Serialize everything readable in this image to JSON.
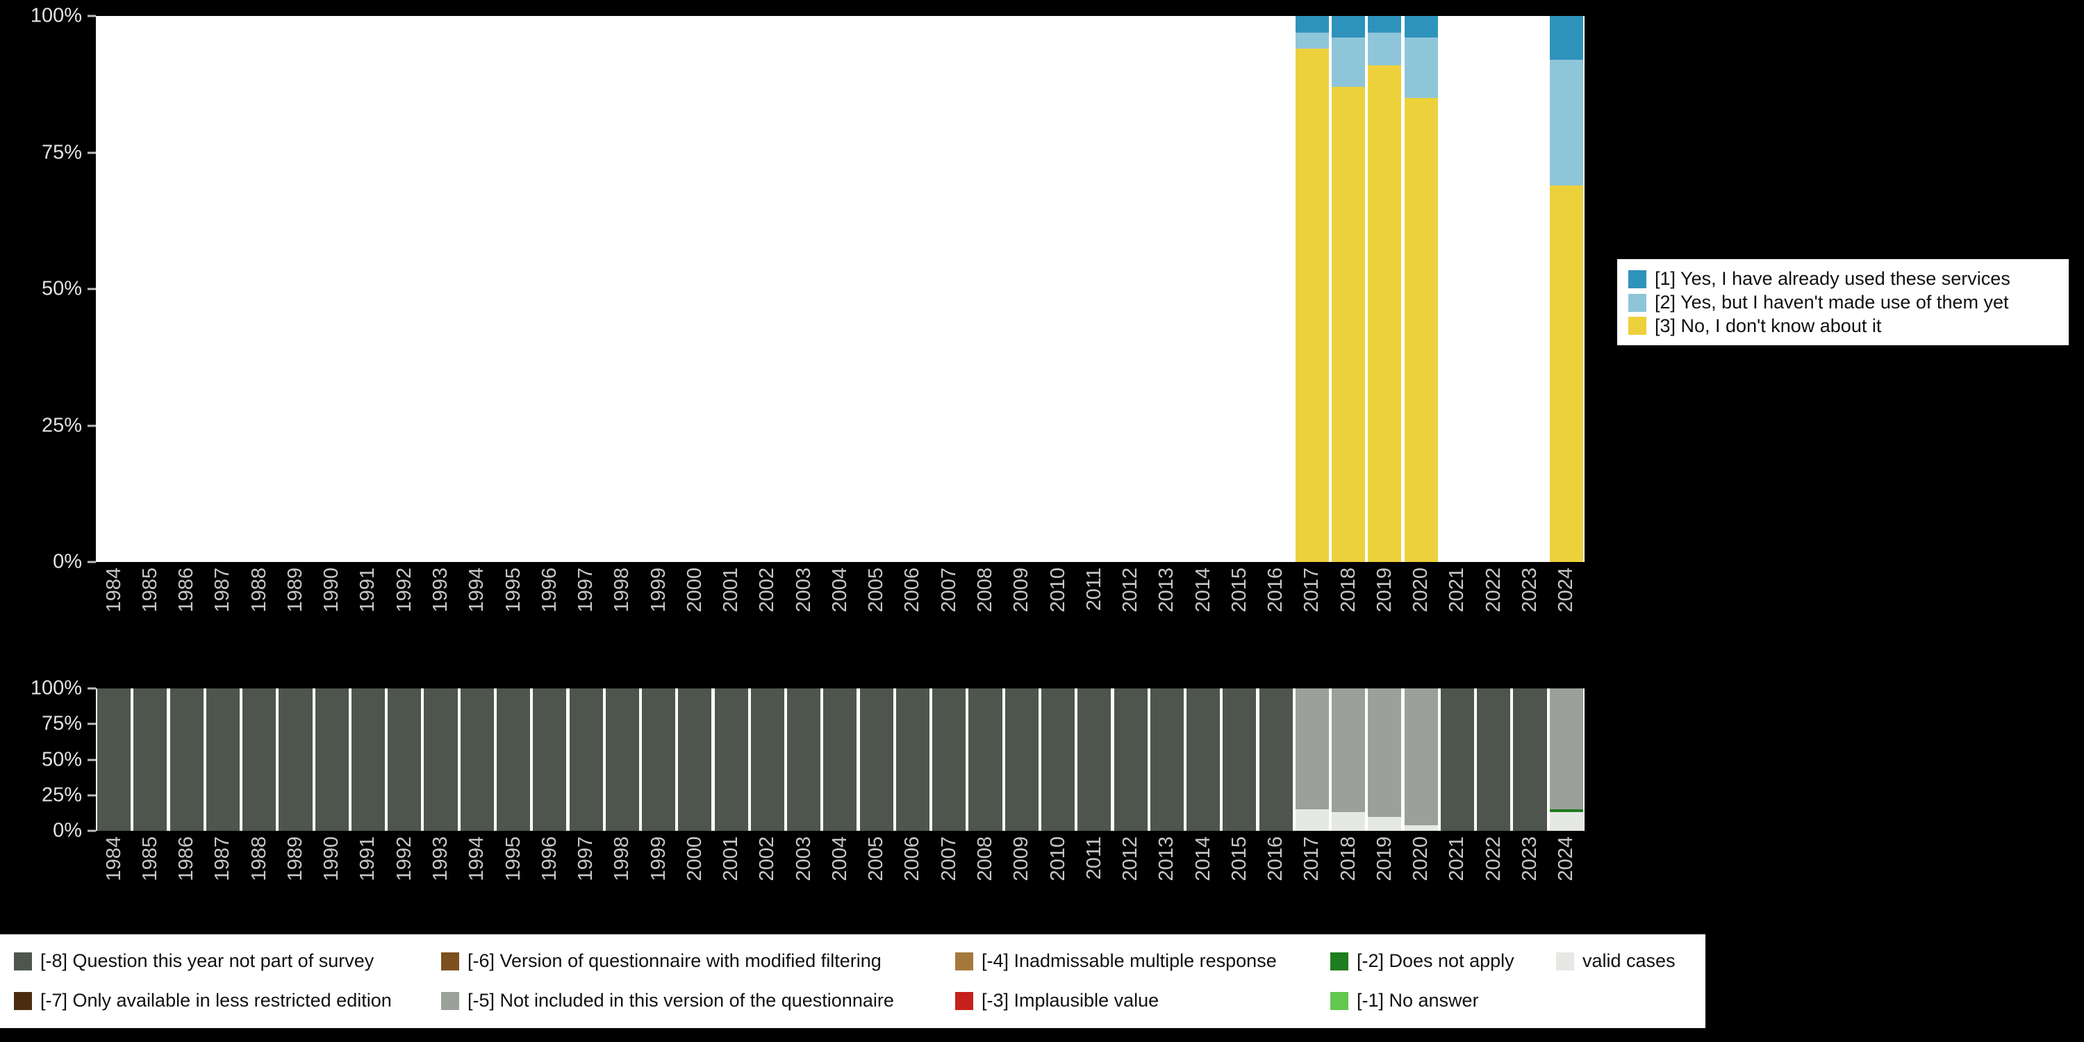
{
  "background": "#000000",
  "chart_data": [
    {
      "id": "usage",
      "type": "bar",
      "stacked": true,
      "title": "",
      "xlabel": "",
      "ylabel": "",
      "ylim": [
        0,
        100
      ],
      "grid": false,
      "legend_position": "right",
      "categories": [
        "1984",
        "1985",
        "1986",
        "1987",
        "1988",
        "1989",
        "1990",
        "1991",
        "1992",
        "1993",
        "1994",
        "1995",
        "1996",
        "1997",
        "1998",
        "1999",
        "2000",
        "2001",
        "2002",
        "2003",
        "2004",
        "2005",
        "2006",
        "2007",
        "2008",
        "2009",
        "2010",
        "2011",
        "2012",
        "2013",
        "2014",
        "2015",
        "2016",
        "2017",
        "2018",
        "2019",
        "2020",
        "2021",
        "2022",
        "2023",
        "2024"
      ],
      "yticks": [
        {
          "label": "0%",
          "value": 0
        },
        {
          "label": "25%",
          "value": 25
        },
        {
          "label": "50%",
          "value": 50
        },
        {
          "label": "75%",
          "value": 75
        },
        {
          "label": "100%",
          "value": 100
        }
      ],
      "stack_order_bottom_up": [
        "3",
        "2",
        "1"
      ],
      "series": [
        {
          "key": "1",
          "label": "[1] Yes, I have already used these services",
          "color": "#2e93bb",
          "values": {
            "2017": 3,
            "2018": 4,
            "2019": 3,
            "2020": 4,
            "2024": 8
          }
        },
        {
          "key": "2",
          "label": "[2] Yes, but I haven't made use of them yet",
          "color": "#8ec5d9",
          "values": {
            "2017": 3,
            "2018": 9,
            "2019": 6,
            "2020": 11,
            "2024": 23
          }
        },
        {
          "key": "3",
          "label": "[3] No, I don't know about it",
          "color": "#edd13c",
          "values": {
            "2017": 94,
            "2018": 87,
            "2019": 91,
            "2020": 85,
            "2024": 69
          }
        }
      ]
    },
    {
      "id": "missing",
      "type": "bar",
      "stacked": true,
      "title": "",
      "xlabel": "",
      "ylabel": "",
      "ylim": [
        0,
        100
      ],
      "grid": false,
      "legend_position": "bottom",
      "categories": [
        "1984",
        "1985",
        "1986",
        "1987",
        "1988",
        "1989",
        "1990",
        "1991",
        "1992",
        "1993",
        "1994",
        "1995",
        "1996",
        "1997",
        "1998",
        "1999",
        "2000",
        "2001",
        "2002",
        "2003",
        "2004",
        "2005",
        "2006",
        "2007",
        "2008",
        "2009",
        "2010",
        "2011",
        "2012",
        "2013",
        "2014",
        "2015",
        "2016",
        "2017",
        "2018",
        "2019",
        "2020",
        "2021",
        "2022",
        "2023",
        "2024"
      ],
      "yticks": [
        {
          "label": "0%",
          "value": 0
        },
        {
          "label": "25%",
          "value": 25
        },
        {
          "label": "50%",
          "value": 50
        },
        {
          "label": "75%",
          "value": 75
        },
        {
          "label": "100%",
          "value": 100
        }
      ],
      "stack_order_bottom_up": [
        "valid",
        "-1",
        "-2",
        "-3",
        "-4",
        "-5",
        "-6",
        "-7",
        "-8"
      ],
      "series": [
        {
          "key": "-8",
          "label": "[-8] Question this year not part of survey",
          "color": "#4d554d",
          "values": {
            "1984": 100,
            "1985": 100,
            "1986": 100,
            "1987": 100,
            "1988": 100,
            "1989": 100,
            "1990": 100,
            "1991": 100,
            "1992": 100,
            "1993": 100,
            "1994": 100,
            "1995": 100,
            "1996": 100,
            "1997": 100,
            "1998": 100,
            "1999": 100,
            "2000": 100,
            "2001": 100,
            "2002": 100,
            "2003": 100,
            "2004": 100,
            "2005": 100,
            "2006": 100,
            "2007": 100,
            "2008": 100,
            "2009": 100,
            "2010": 100,
            "2011": 100,
            "2012": 100,
            "2013": 100,
            "2014": 100,
            "2015": 100,
            "2016": 100,
            "2021": 100,
            "2022": 100,
            "2023": 100
          }
        },
        {
          "key": "-7",
          "label": "[-7] Only available in less restricted edition",
          "color": "#4a2d10",
          "values": {}
        },
        {
          "key": "-6",
          "label": "[-6] Version of questionnaire with modified filtering",
          "color": "#7d5020",
          "values": {}
        },
        {
          "key": "-5",
          "label": "[-5] Not included in this version of the questionnaire",
          "color": "#9ba09b",
          "values": {
            "2017": 85,
            "2018": 87,
            "2019": 90,
            "2020": 96,
            "2024": 85
          }
        },
        {
          "key": "-4",
          "label": "[-4] Inadmissable multiple response",
          "color": "#a5793d",
          "values": {}
        },
        {
          "key": "-3",
          "label": "[-3] Implausible value",
          "color": "#c6201c",
          "values": {}
        },
        {
          "key": "-2",
          "label": "[-2] Does not apply",
          "color": "#1e7d1e",
          "values": {
            "2024": 2
          }
        },
        {
          "key": "-1",
          "label": "[-1] No answer",
          "color": "#63c84f",
          "values": {}
        },
        {
          "key": "valid",
          "label": "valid cases",
          "color": "#e6e8e3",
          "values": {
            "2017": 15,
            "2018": 13,
            "2019": 10,
            "2020": 4,
            "2024": 13
          }
        }
      ]
    }
  ]
}
